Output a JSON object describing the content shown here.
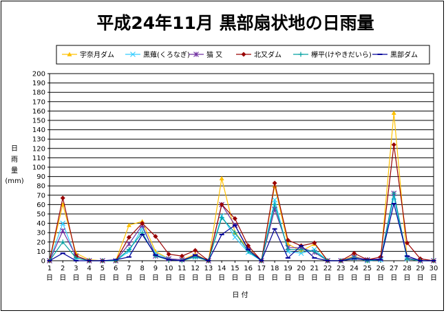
{
  "chart_data": {
    "type": "line",
    "title": "平成24年11月 黒部扇状地の日雨量",
    "xlabel": "日 付",
    "ylabel": [
      "日",
      "雨",
      "量",
      "(mm)"
    ],
    "ylim": [
      0,
      200
    ],
    "yticks": [
      0,
      10,
      20,
      30,
      40,
      50,
      60,
      70,
      80,
      90,
      100,
      110,
      120,
      130,
      140,
      150,
      160,
      170,
      180,
      190,
      200
    ],
    "x": [
      1,
      2,
      3,
      4,
      5,
      6,
      7,
      8,
      9,
      10,
      11,
      12,
      13,
      14,
      15,
      16,
      17,
      18,
      19,
      20,
      21,
      22,
      23,
      24,
      25,
      26,
      27,
      28,
      29,
      30
    ],
    "x_suffix": "日",
    "grid": true,
    "legend_position": "top",
    "series": [
      {
        "name": "宇奈月ダム",
        "color": "#FFC000",
        "marker": "triangle",
        "values": [
          0,
          60,
          8,
          1,
          0,
          0,
          38,
          42,
          10,
          2,
          1,
          7,
          0,
          88,
          30,
          13,
          0,
          80,
          18,
          10,
          18,
          0,
          0,
          5,
          0,
          2,
          158,
          2,
          0,
          0
        ]
      },
      {
        "name": "黒薙(くろなぎ)",
        "color": "#33CCFF",
        "marker": "x",
        "values": [
          0,
          40,
          3,
          0,
          0,
          0,
          10,
          35,
          8,
          2,
          1,
          4,
          0,
          48,
          25,
          9,
          0,
          65,
          10,
          8,
          12,
          0,
          0,
          3,
          0,
          1,
          68,
          2,
          0,
          0
        ]
      },
      {
        "name": "猫 又",
        "color": "#7030A0",
        "marker": "star",
        "values": [
          0,
          32,
          5,
          0,
          0,
          0,
          18,
          38,
          5,
          2,
          1,
          5,
          0,
          60,
          38,
          12,
          0,
          55,
          14,
          14,
          9,
          0,
          0,
          4,
          1,
          2,
          72,
          3,
          0,
          0
        ]
      },
      {
        "name": "北又ダム",
        "color": "#990000",
        "marker": "diamond",
        "values": [
          0,
          67,
          5,
          0,
          0,
          0,
          25,
          40,
          26,
          7,
          5,
          11,
          0,
          60,
          45,
          16,
          0,
          83,
          22,
          16,
          19,
          0,
          0,
          8,
          1,
          4,
          124,
          19,
          2,
          0
        ]
      },
      {
        "name": "欅平(けやきだいら)",
        "color": "#00A0A0",
        "marker": "plus",
        "values": [
          0,
          20,
          3,
          0,
          0,
          0,
          12,
          30,
          5,
          1,
          0,
          4,
          0,
          46,
          30,
          10,
          0,
          60,
          12,
          12,
          10,
          0,
          0,
          3,
          0,
          1,
          72,
          2,
          0,
          0
        ]
      },
      {
        "name": "黒部ダム",
        "color": "#000099",
        "marker": "dash",
        "values": [
          0,
          8,
          0,
          0,
          0,
          1,
          4,
          28,
          6,
          1,
          0,
          6,
          0,
          28,
          38,
          12,
          0,
          34,
          3,
          16,
          3,
          0,
          0,
          2,
          1,
          1,
          61,
          5,
          0,
          0
        ]
      }
    ]
  }
}
